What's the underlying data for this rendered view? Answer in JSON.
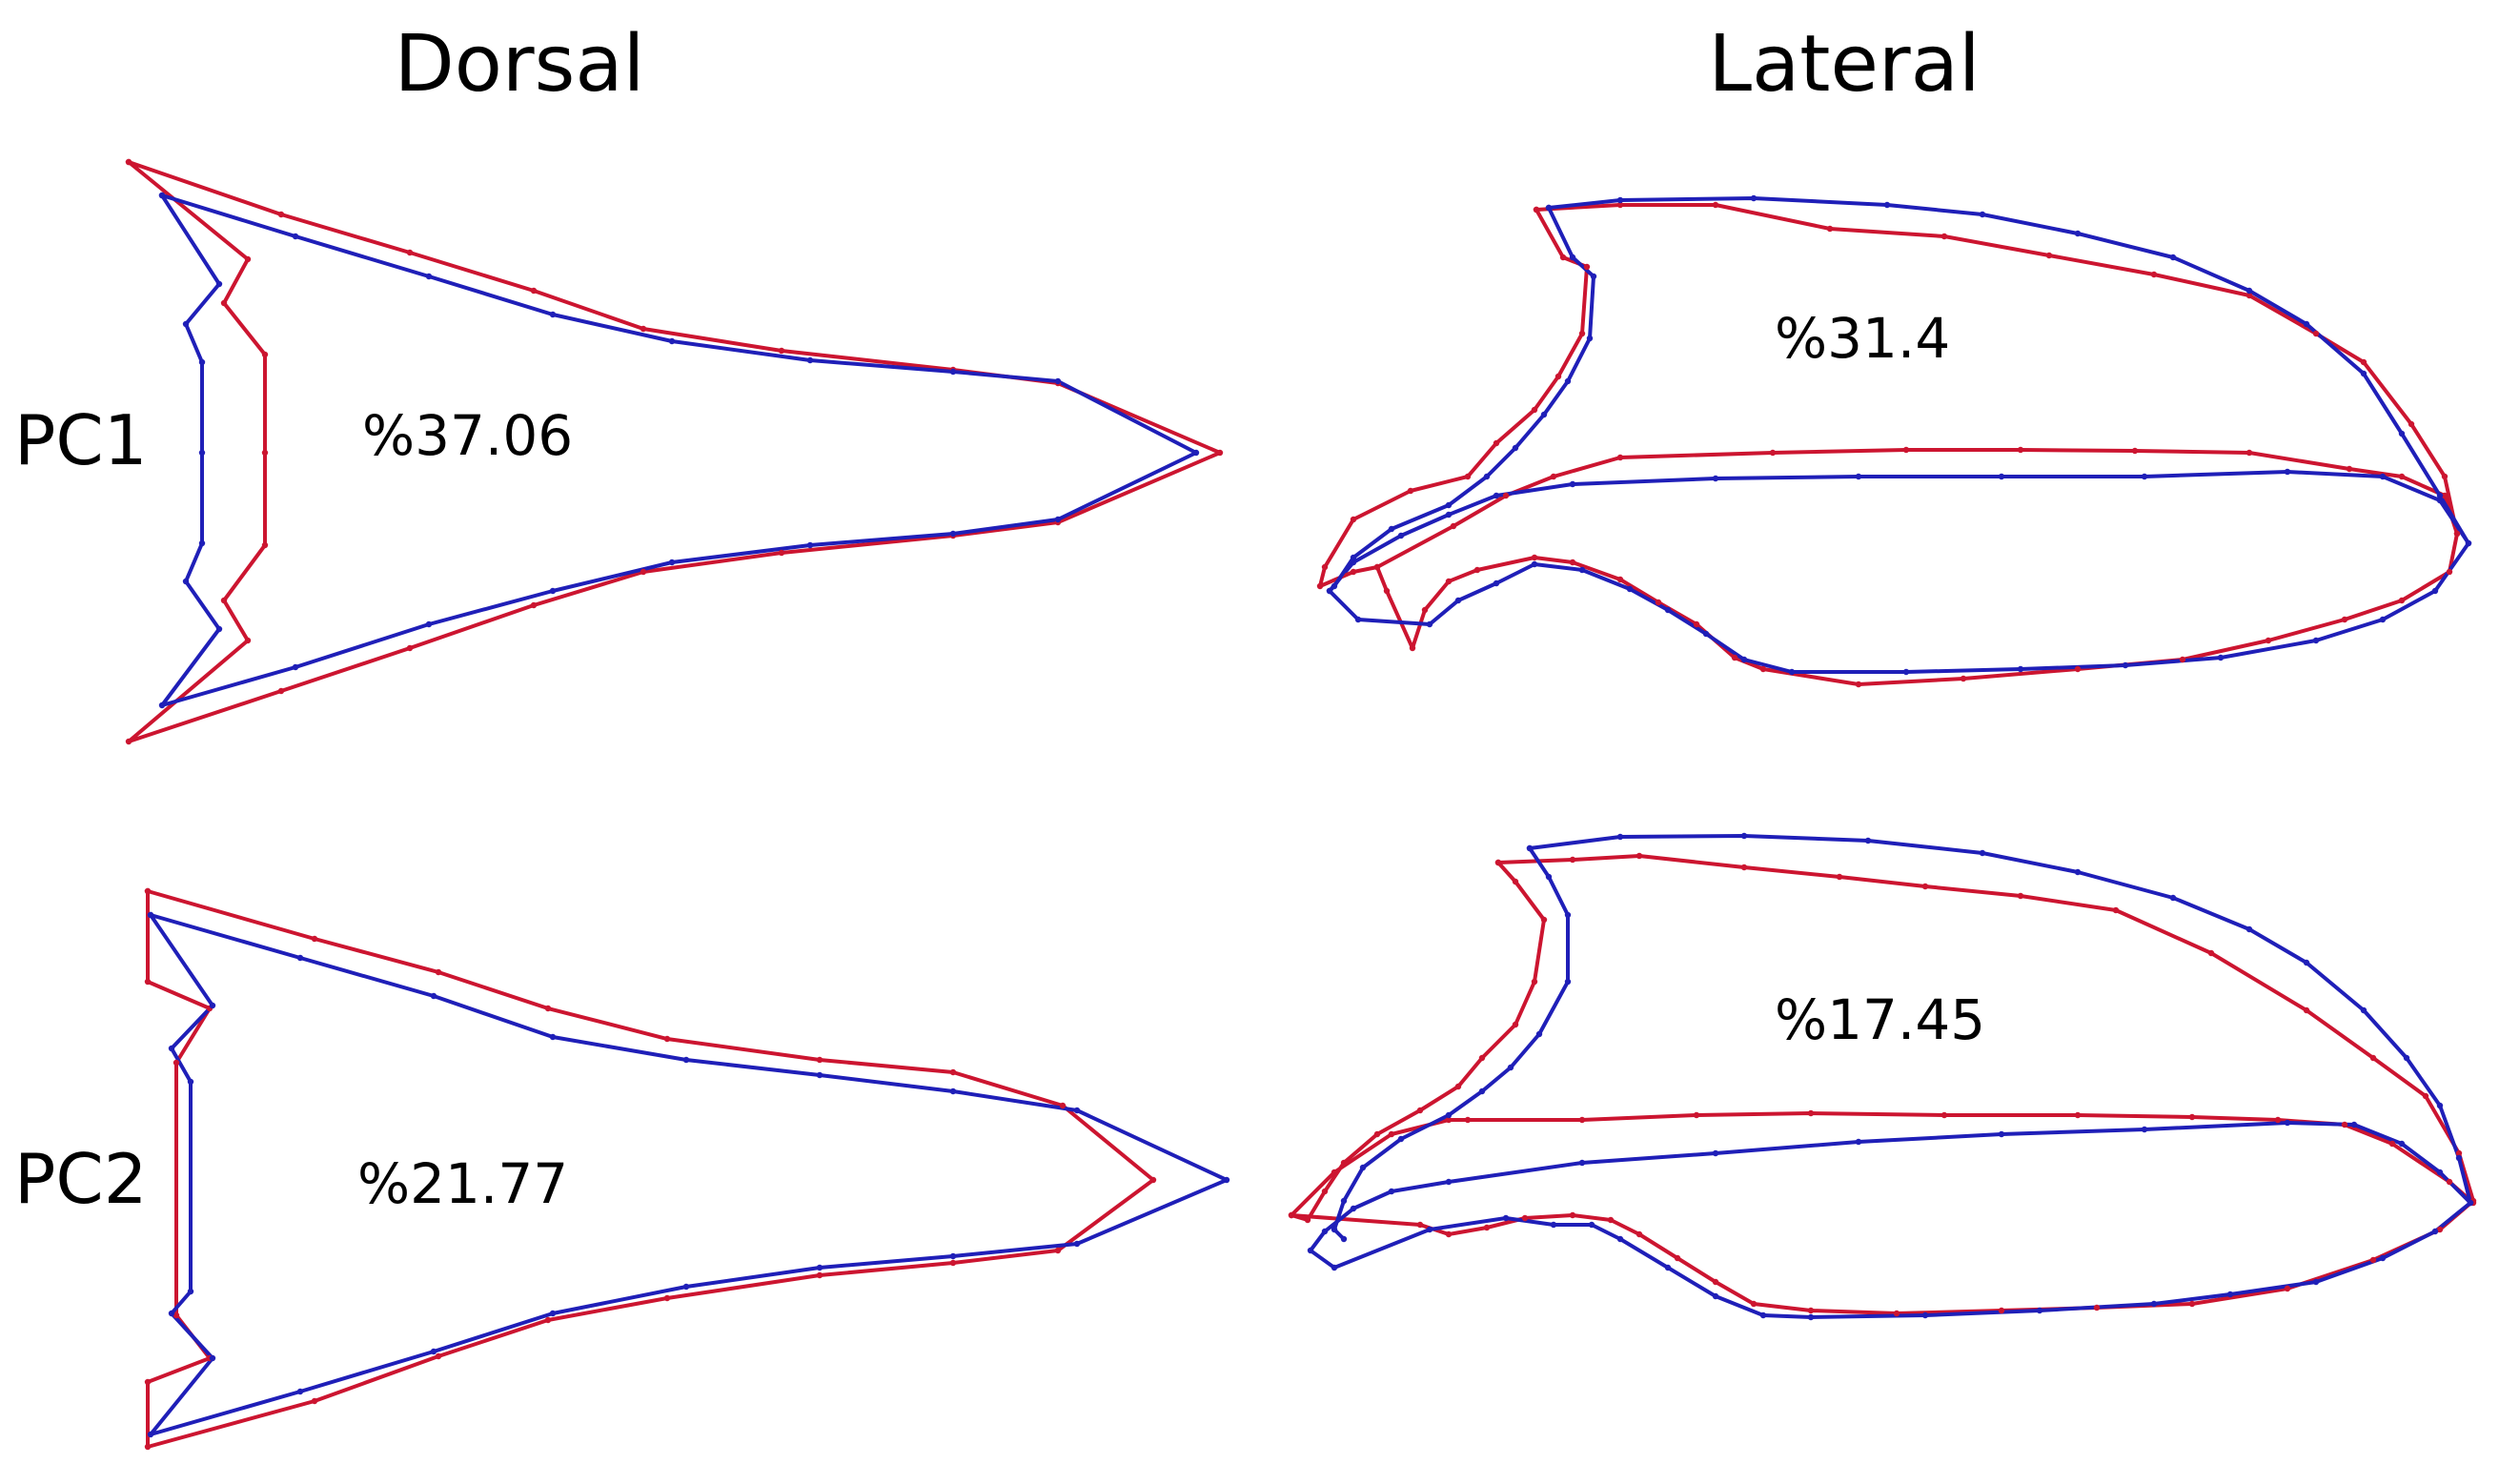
{
  "columns": {
    "dorsal": "Dorsal",
    "lateral": "Lateral"
  },
  "rows": {
    "pc1": "PC1",
    "pc2": "PC2"
  },
  "percentages": {
    "pc1_dorsal": "%37.06",
    "pc1_lateral": "%31.4",
    "pc2_dorsal": "%21.77",
    "pc2_lateral": "%17.45"
  },
  "colors": {
    "blue": "#1f1fb8",
    "red": "#cc1530"
  }
}
